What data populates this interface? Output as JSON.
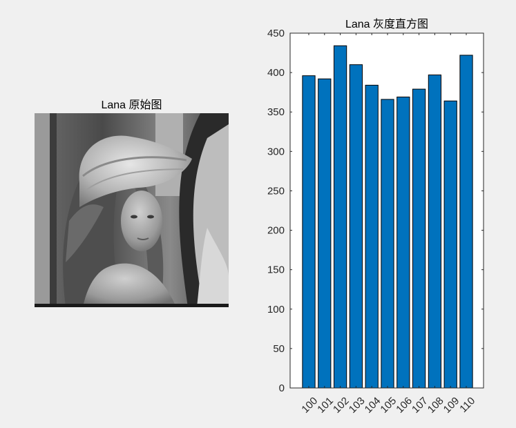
{
  "figure": {
    "background_color": "#f0f0f0"
  },
  "image_panel": {
    "title": "Lana 原始图",
    "image_icon": "grayscale-photo-of-woman-in-hat"
  },
  "chart_data": {
    "type": "bar",
    "title": "Lana 灰度直方图",
    "xlabel": "",
    "ylabel": "",
    "categories": [
      "100",
      "101",
      "102",
      "103",
      "104",
      "105",
      "106",
      "107",
      "108",
      "109",
      "110"
    ],
    "values": [
      396,
      392,
      434,
      410,
      384,
      366,
      369,
      379,
      397,
      364,
      422
    ],
    "ylim": [
      0,
      450
    ],
    "yticks": [
      0,
      50,
      100,
      150,
      200,
      250,
      300,
      350,
      400,
      450
    ],
    "xtick_rotation_deg": -45,
    "grid": false,
    "legend": "none",
    "bar_color": "#0072bd",
    "axis_color": "#262626"
  }
}
